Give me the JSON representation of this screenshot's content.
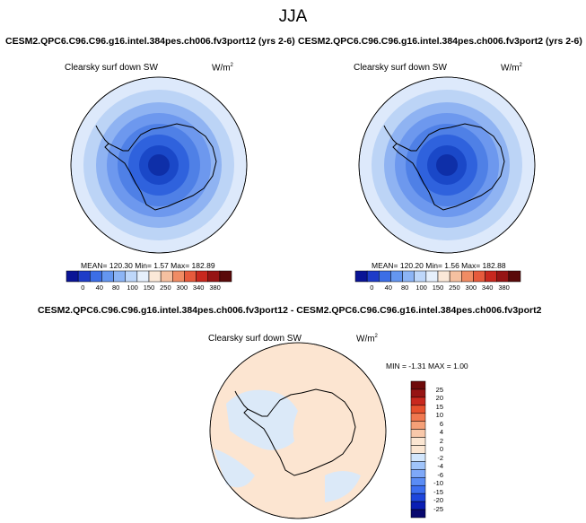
{
  "main_title": "JJA",
  "colors": {
    "abs_scale": [
      "#0a1496",
      "#1e3cc8",
      "#3c6ee6",
      "#6496f0",
      "#8cb4f5",
      "#bed7fa",
      "#e6f0fc",
      "#fbe8d8",
      "#f5c0a0",
      "#f08c64",
      "#e65a3c",
      "#c8281e",
      "#961414",
      "#5a0a0a"
    ],
    "diff_scale": [
      "#08086e",
      "#0a1eb4",
      "#1e46dc",
      "#3c6ef0",
      "#5a8cf5",
      "#7ea8f8",
      "#a0c4fa",
      "#d2e6fc",
      "#fbe6d2",
      "#fbe6d2",
      "#f8c8aa",
      "#f5a078",
      "#f07850",
      "#e6502d",
      "#c8281e",
      "#961414",
      "#6e0a0a"
    ]
  },
  "panels": [
    {
      "title": "CESM2.QPC6.C96.C96.g16.intel.384pes.ch006.fv3port12 (yrs 2-6)",
      "variable": "Clearsky surf down SW",
      "units": "W/m",
      "units_exp": "2",
      "stats": "MEAN= 120.30  Min=   1.57  Max= 182.89",
      "colorbar_ticks": [
        "0",
        "40",
        "80",
        "100",
        "150",
        "250",
        "300",
        "340",
        "380"
      ]
    },
    {
      "title": "CESM2.QPC6.C96.C96.g16.intel.384pes.ch006.fv3port2 (yrs 2-6)",
      "variable": "Clearsky surf down SW",
      "units": "W/m",
      "units_exp": "2",
      "stats": "MEAN= 120.20  Min=   1.56  Max= 182.88",
      "colorbar_ticks": [
        "0",
        "40",
        "80",
        "100",
        "150",
        "250",
        "300",
        "340",
        "380"
      ]
    }
  ],
  "diff_panel": {
    "title": "CESM2.QPC6.C96.C96.g16.intel.384pes.ch006.fv3port12 - CESM2.QPC6.C96.C96.g16.intel.384pes.ch006.fv3port2",
    "variable": "Clearsky surf down SW",
    "units": "W/m",
    "units_exp": "2",
    "stats": "MIN = -1.31 MAX =  1.00",
    "colorbar_ticks": [
      "25",
      "20",
      "15",
      "10",
      "6",
      "4",
      "2",
      "0",
      "-2",
      "-4",
      "-6",
      "-10",
      "-15",
      "-20",
      "-25"
    ]
  },
  "chart_data": [
    {
      "type": "heatmap",
      "projection": "south polar stereographic",
      "title": "CESM2.QPC6.C96.C96.g16.intel.384pes.ch006.fv3port12 (yrs 2-6)",
      "variable": "Clearsky surf down SW",
      "units": "W/m2",
      "mean": 120.3,
      "min": 1.57,
      "max": 182.89,
      "contour_levels": [
        0,
        40,
        80,
        100,
        150,
        250,
        300,
        340,
        380
      ],
      "legend": "bottom"
    },
    {
      "type": "heatmap",
      "projection": "south polar stereographic",
      "title": "CESM2.QPC6.C96.C96.g16.intel.384pes.ch006.fv3port2 (yrs 2-6)",
      "variable": "Clearsky surf down SW",
      "units": "W/m2",
      "mean": 120.2,
      "min": 1.56,
      "max": 182.88,
      "contour_levels": [
        0,
        40,
        80,
        100,
        150,
        250,
        300,
        340,
        380
      ],
      "legend": "bottom"
    },
    {
      "type": "heatmap",
      "projection": "south polar stereographic",
      "title": "CESM2.QPC6.C96.C96.g16.intel.384pes.ch006.fv3port12 - CESM2.QPC6.C96.C96.g16.intel.384pes.ch006.fv3port2",
      "variable": "Clearsky surf down SW",
      "units": "W/m2",
      "min": -1.31,
      "max": 1.0,
      "contour_levels": [
        -25,
        -20,
        -15,
        -10,
        -6,
        -4,
        -2,
        0,
        2,
        4,
        6,
        10,
        15,
        20,
        25
      ],
      "legend": "right"
    }
  ]
}
